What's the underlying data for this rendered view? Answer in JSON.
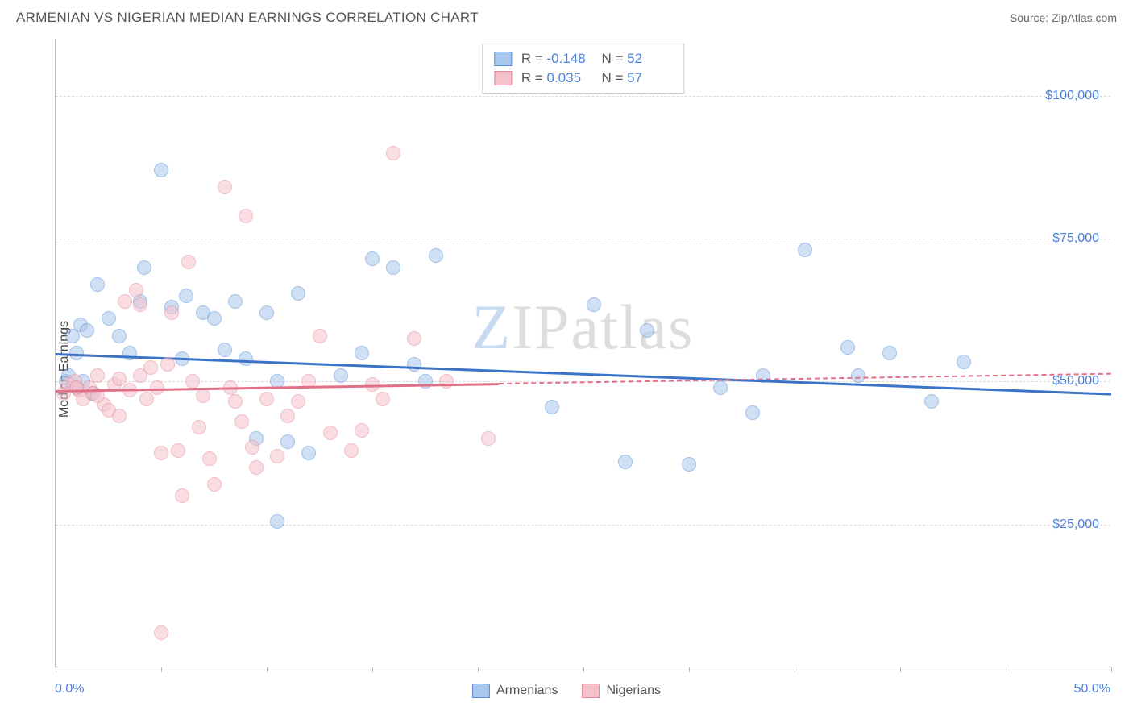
{
  "title": "ARMENIAN VS NIGERIAN MEDIAN EARNINGS CORRELATION CHART",
  "source": "Source: ZipAtlas.com",
  "watermark_first": "Z",
  "watermark_rest": "IPatlas",
  "ylabel": "Median Earnings",
  "chart": {
    "type": "scatter",
    "background_color": "#ffffff",
    "grid_color": "#dddddd",
    "axis_color": "#bbbbbb",
    "label_color": "#4a7fd8",
    "text_color": "#555555",
    "xlim": [
      0,
      50
    ],
    "ylim": [
      0,
      110000
    ],
    "xtick_positions": [
      0,
      5,
      10,
      15,
      20,
      25,
      30,
      35,
      40,
      45,
      50
    ],
    "xlabel_min": "0.0%",
    "xlabel_max": "50.0%",
    "yticks": [
      {
        "v": 25000,
        "label": "$25,000"
      },
      {
        "v": 50000,
        "label": "$50,000"
      },
      {
        "v": 75000,
        "label": "$75,000"
      },
      {
        "v": 100000,
        "label": "$100,000"
      }
    ],
    "marker_radius": 9,
    "marker_opacity": 0.55,
    "series": [
      {
        "id": "armenians",
        "label": "Armenians",
        "fill": "#a9c7ec",
        "stroke": "#5b8fd6",
        "r_label": "R =",
        "r_value": "-0.148",
        "n_label": "N =",
        "n_value": "52",
        "trend": {
          "y_at_xmin": 55000,
          "y_at_xmax": 48000,
          "color": "#3b73c9",
          "dash_from_x": null
        },
        "points": [
          [
            0.5,
            50000
          ],
          [
            0.8,
            58000
          ],
          [
            1.0,
            49000
          ],
          [
            1.2,
            60000
          ],
          [
            1.5,
            59000
          ],
          [
            1.7,
            48000
          ],
          [
            0.6,
            51000
          ],
          [
            1.0,
            55000
          ],
          [
            2.0,
            67000
          ],
          [
            2.5,
            61000
          ],
          [
            3.0,
            58000
          ],
          [
            3.5,
            55000
          ],
          [
            4.0,
            64000
          ],
          [
            4.2,
            70000
          ],
          [
            5.0,
            87000
          ],
          [
            5.5,
            63000
          ],
          [
            6.0,
            54000
          ],
          [
            6.2,
            65000
          ],
          [
            7.0,
            62000
          ],
          [
            7.5,
            61000
          ],
          [
            8.0,
            55500
          ],
          [
            8.5,
            64000
          ],
          [
            9.0,
            54000
          ],
          [
            9.5,
            40000
          ],
          [
            10.0,
            62000
          ],
          [
            10.5,
            50000
          ],
          [
            11.0,
            39500
          ],
          [
            11.5,
            65500
          ],
          [
            12.0,
            37500
          ],
          [
            10.5,
            25500
          ],
          [
            13.5,
            51000
          ],
          [
            14.5,
            55000
          ],
          [
            15.0,
            71500
          ],
          [
            16.0,
            70000
          ],
          [
            17.0,
            53000
          ],
          [
            17.5,
            50000
          ],
          [
            18.0,
            72000
          ],
          [
            23.5,
            45500
          ],
          [
            25.5,
            63500
          ],
          [
            27.0,
            36000
          ],
          [
            28.0,
            59000
          ],
          [
            30.0,
            35500
          ],
          [
            31.5,
            49000
          ],
          [
            33.0,
            44500
          ],
          [
            35.5,
            73000
          ],
          [
            37.5,
            56000
          ],
          [
            38.0,
            51000
          ],
          [
            39.5,
            55000
          ],
          [
            41.5,
            46500
          ],
          [
            33.5,
            51000
          ],
          [
            43.0,
            53500
          ],
          [
            1.3,
            50000
          ]
        ]
      },
      {
        "id": "nigerians",
        "label": "Nigerians",
        "fill": "#f5c2cb",
        "stroke": "#e48a9b",
        "r_label": "R =",
        "r_value": "0.035",
        "n_label": "N =",
        "n_value": "57",
        "trend": {
          "y_at_xmin": 48500,
          "y_at_xmax": 51500,
          "color": "#e16f86",
          "dash_from_x": 21
        },
        "points": [
          [
            0.4,
            48000
          ],
          [
            0.6,
            49500
          ],
          [
            0.9,
            50000
          ],
          [
            1.1,
            48500
          ],
          [
            1.3,
            47000
          ],
          [
            1.6,
            49000
          ],
          [
            1.8,
            48000
          ],
          [
            2.0,
            51000
          ],
          [
            2.3,
            46000
          ],
          [
            2.5,
            45000
          ],
          [
            2.8,
            49500
          ],
          [
            3.0,
            50500
          ],
          [
            3.3,
            64000
          ],
          [
            3.5,
            48500
          ],
          [
            3.8,
            66000
          ],
          [
            4.0,
            63500
          ],
          [
            4.3,
            47000
          ],
          [
            4.5,
            52500
          ],
          [
            4.8,
            49000
          ],
          [
            5.0,
            37500
          ],
          [
            5.3,
            53000
          ],
          [
            5.5,
            62000
          ],
          [
            5.8,
            38000
          ],
          [
            6.0,
            30000
          ],
          [
            6.3,
            71000
          ],
          [
            6.5,
            50000
          ],
          [
            6.8,
            42000
          ],
          [
            7.0,
            47500
          ],
          [
            7.3,
            36500
          ],
          [
            7.5,
            32000
          ],
          [
            5.0,
            6000
          ],
          [
            8.0,
            84000
          ],
          [
            8.3,
            49000
          ],
          [
            8.5,
            46500
          ],
          [
            8.8,
            43000
          ],
          [
            9.0,
            79000
          ],
          [
            9.3,
            38500
          ],
          [
            9.5,
            35000
          ],
          [
            10.0,
            47000
          ],
          [
            10.5,
            37000
          ],
          [
            11.0,
            44000
          ],
          [
            11.5,
            46500
          ],
          [
            12.0,
            50000
          ],
          [
            12.5,
            58000
          ],
          [
            13.0,
            41000
          ],
          [
            14.0,
            38000
          ],
          [
            14.5,
            41500
          ],
          [
            15.0,
            49500
          ],
          [
            15.5,
            47000
          ],
          [
            16.0,
            90000
          ],
          [
            17.0,
            57500
          ],
          [
            18.5,
            50000
          ],
          [
            20.5,
            40000
          ],
          [
            3.0,
            44000
          ],
          [
            4.0,
            51000
          ],
          [
            2.0,
            47500
          ],
          [
            1.0,
            49000
          ]
        ]
      }
    ]
  },
  "bottom_legend": [
    {
      "label": "Armenians",
      "fill": "#a9c7ec",
      "stroke": "#5b8fd6"
    },
    {
      "label": "Nigerians",
      "fill": "#f5c2cb",
      "stroke": "#e48a9b"
    }
  ]
}
